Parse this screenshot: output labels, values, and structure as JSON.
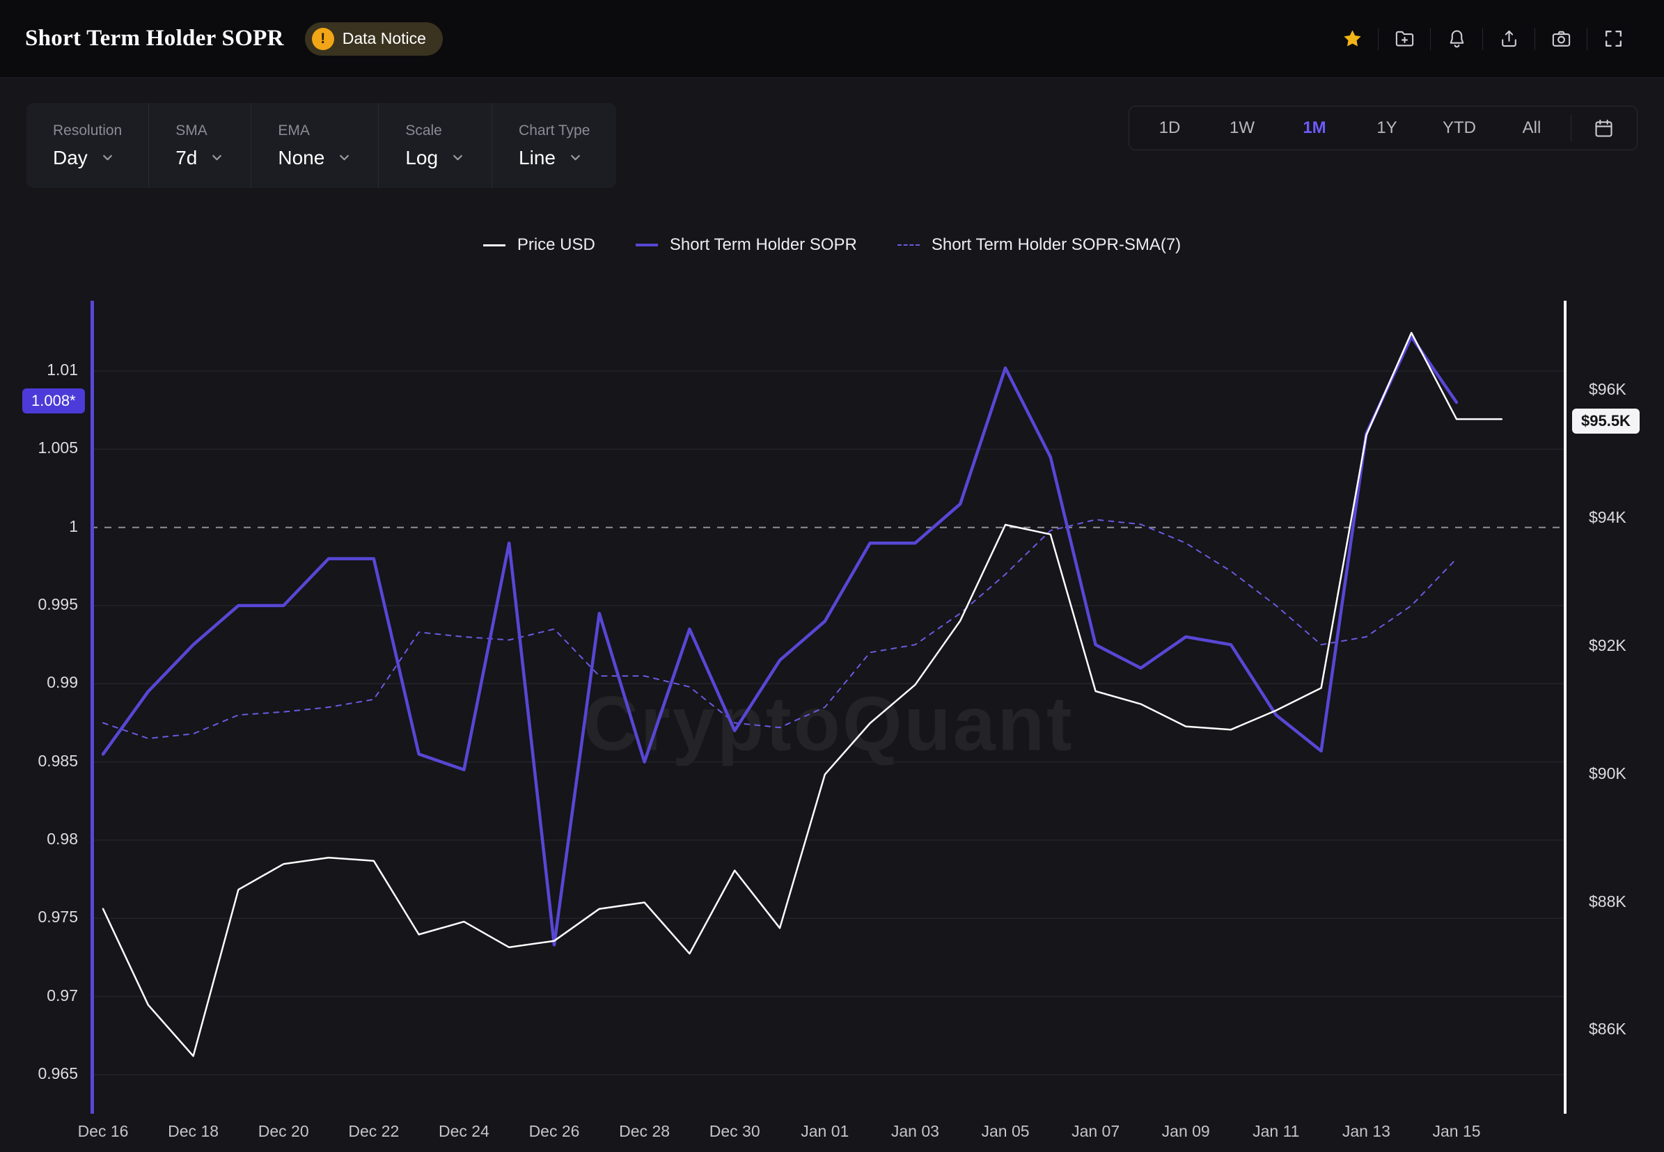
{
  "header": {
    "title": "Short Term Holder SOPR",
    "data_notice": {
      "label": "Data Notice",
      "icon_glyph": "!"
    },
    "action_icons": [
      "favorite-star-icon",
      "add-to-folder-icon",
      "notification-bell-icon",
      "share-icon",
      "camera-icon",
      "fullscreen-icon"
    ]
  },
  "toolbar": {
    "controls": [
      {
        "label": "Resolution",
        "value": "Day"
      },
      {
        "label": "SMA",
        "value": "7d"
      },
      {
        "label": "EMA",
        "value": "None"
      },
      {
        "label": "Scale",
        "value": "Log"
      },
      {
        "label": "Chart Type",
        "value": "Line"
      }
    ],
    "ranges": [
      "1D",
      "1W",
      "1M",
      "1Y",
      "YTD",
      "All"
    ],
    "active_range": "1M",
    "calendar_icon": "calendar-icon"
  },
  "legend": [
    {
      "label": "Price USD",
      "color": "#ffffff",
      "style": "solid",
      "weight": 3
    },
    {
      "label": "Short Term Holder SOPR",
      "color": "#5847d5",
      "style": "solid",
      "weight": 4
    },
    {
      "label": "Short Term Holder SOPR-SMA(7)",
      "color": "#6a5be0",
      "style": "dashed",
      "weight": 2
    }
  ],
  "watermark": "CryptoQuant",
  "colors": {
    "background": "#15151a",
    "header_background": "#0b0b0e",
    "panel_background": "#1c1c23",
    "accent_purple": "#5847d5",
    "sma_purple": "#6a5be0",
    "price_white": "#ffffff",
    "baseline_gray": "#8f8f98",
    "gridline": "#23232b",
    "badge_purple": "#4c3bd8",
    "badge_white": "#f4f4f6",
    "active_range": "#6e5bfa",
    "star_gold": "#f2b417",
    "notice_orange": "#f2a516"
  },
  "chart_data": {
    "type": "line",
    "title": "Short Term Holder SOPR",
    "grid": true,
    "x_dates": [
      "Dec 16",
      "Dec 17",
      "Dec 18",
      "Dec 19",
      "Dec 20",
      "Dec 21",
      "Dec 22",
      "Dec 23",
      "Dec 24",
      "Dec 25",
      "Dec 26",
      "Dec 27",
      "Dec 28",
      "Dec 29",
      "Dec 30",
      "Dec 31",
      "Jan 01",
      "Jan 02",
      "Jan 03",
      "Jan 04",
      "Jan 05",
      "Jan 06",
      "Jan 07",
      "Jan 08",
      "Jan 09",
      "Jan 10",
      "Jan 11",
      "Jan 12",
      "Jan 13",
      "Jan 14",
      "Jan 15",
      "Jan 16"
    ],
    "x_tick_labels": [
      "Dec 16",
      "Dec 18",
      "Dec 20",
      "Dec 22",
      "Dec 24",
      "Dec 26",
      "Dec 28",
      "Dec 30",
      "Jan 01",
      "Jan 03",
      "Jan 05",
      "Jan 07",
      "Jan 09",
      "Jan 11",
      "Jan 13",
      "Jan 15"
    ],
    "x_tick_day_index": [
      0,
      2,
      4,
      6,
      8,
      10,
      12,
      14,
      16,
      18,
      20,
      22,
      24,
      26,
      28,
      30
    ],
    "left_axis": {
      "title": "Short Term Holder SOPR",
      "ticks": [
        1.01,
        1.005,
        1,
        0.995,
        0.99,
        0.985,
        0.98,
        0.975,
        0.97,
        0.965
      ],
      "labels": [
        "1.01",
        "1.005",
        "1",
        "0.995",
        "0.99",
        "0.985",
        "0.98",
        "0.975",
        "0.97",
        "0.965"
      ],
      "min": 0.9625,
      "max": 1.0145,
      "baseline": 1,
      "last_value": 1.008,
      "last_value_badge": "1.008*"
    },
    "right_axis": {
      "title": "Price USD",
      "ticks": [
        96,
        94,
        92,
        90,
        88,
        86
      ],
      "labels": [
        "$96K",
        "$94K",
        "$92K",
        "$90K",
        "$88K",
        "$86K"
      ],
      "min": 84.7,
      "max": 97.4,
      "last_value": 95.5,
      "last_value_badge": "$95.5K"
    },
    "series": [
      {
        "name": "Price USD",
        "axis": "right",
        "color": "#ffffff",
        "dash": false,
        "width": 2.5,
        "values": [
          87.9,
          86.4,
          85.6,
          88.2,
          88.6,
          88.7,
          88.65,
          87.5,
          87.7,
          87.3,
          87.4,
          87.9,
          88.0,
          87.2,
          88.5,
          87.6,
          90.0,
          90.8,
          91.4,
          92.4,
          93.9,
          93.75,
          91.3,
          91.1,
          90.75,
          90.7,
          91.0,
          91.35,
          95.3,
          96.9,
          95.55,
          95.55
        ]
      },
      {
        "name": "Short Term Holder SOPR",
        "axis": "left",
        "color": "#5847d5",
        "dash": false,
        "width": 4.5,
        "values": [
          0.9855,
          0.9895,
          0.9925,
          0.995,
          0.995,
          0.998,
          0.998,
          0.9855,
          0.9845,
          0.999,
          0.9733,
          0.9945,
          0.985,
          0.9935,
          0.987,
          0.9915,
          0.994,
          0.999,
          0.999,
          1.0015,
          1.0102,
          1.0045,
          0.9925,
          0.991,
          0.993,
          0.9925,
          0.988,
          0.9857,
          1.006,
          1.0122,
          1.008,
          null
        ]
      },
      {
        "name": "Short Term Holder SOPR-SMA(7)",
        "axis": "left",
        "color": "#6a5be0",
        "dash": true,
        "width": 2,
        "values": [
          0.9875,
          0.9865,
          0.9868,
          0.988,
          0.9882,
          0.9885,
          0.989,
          0.9933,
          0.993,
          0.9928,
          0.9935,
          0.9905,
          0.9905,
          0.9898,
          0.9875,
          0.9872,
          0.9885,
          0.992,
          0.9925,
          0.9945,
          0.997,
          0.9998,
          1.0005,
          1.0002,
          0.999,
          0.9972,
          0.995,
          0.9925,
          0.993,
          0.995,
          0.998,
          null
        ]
      }
    ]
  }
}
